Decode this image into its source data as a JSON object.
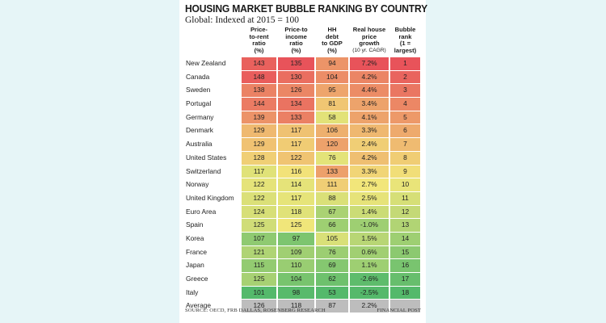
{
  "title": "HOUSING MARKET BUBBLE RANKING BY COUNTRY",
  "subtitle": "Global: Indexed at 2015 = 100",
  "source": "SOURCE: OECD, FRB DALLAS, ROSENBERG RESEARCH",
  "credit": "FINANCIAL POST",
  "chart_data": {
    "type": "table",
    "title": "HOUSING MARKET BUBBLE RANKING BY COUNTRY",
    "subtitle": "Global: Indexed at 2015 = 100",
    "headers": [
      [
        "Price-",
        "to-rent",
        "ratio",
        "(%)"
      ],
      [
        "Price-to",
        "income",
        "ratio",
        "(%)"
      ],
      [
        "HH",
        "debt",
        "to GDP",
        "(%)"
      ],
      [
        "Real house",
        "price",
        "growth",
        "(10 yr. CAGR)"
      ],
      [
        "Bubble",
        "rank",
        "(1 =",
        "largest)"
      ]
    ],
    "rows": [
      {
        "country": "New Zealand",
        "values": [
          "143",
          "135",
          "94",
          "7.2%",
          "1"
        ]
      },
      {
        "country": "Canada",
        "values": [
          "148",
          "130",
          "104",
          "4.2%",
          "2"
        ]
      },
      {
        "country": "Sweden",
        "values": [
          "138",
          "126",
          "95",
          "4.4%",
          "3"
        ]
      },
      {
        "country": "Portugal",
        "values": [
          "144",
          "134",
          "81",
          "3.4%",
          "4"
        ]
      },
      {
        "country": "Germany",
        "values": [
          "139",
          "133",
          "58",
          "4.1%",
          "5"
        ]
      },
      {
        "country": "Denmark",
        "values": [
          "129",
          "117",
          "106",
          "3.3%",
          "6"
        ]
      },
      {
        "country": "Australia",
        "values": [
          "129",
          "117",
          "120",
          "2.4%",
          "7"
        ]
      },
      {
        "country": "United States",
        "values": [
          "128",
          "122",
          "76",
          "4.2%",
          "8"
        ]
      },
      {
        "country": "Switzerland",
        "values": [
          "117",
          "116",
          "133",
          "3.3%",
          "9"
        ]
      },
      {
        "country": "Norway",
        "values": [
          "122",
          "114",
          "111",
          "2.7%",
          "10"
        ]
      },
      {
        "country": "United Kingdom",
        "values": [
          "122",
          "117",
          "88",
          "2.5%",
          "11"
        ]
      },
      {
        "country": "Euro Area",
        "values": [
          "124",
          "118",
          "67",
          "1.4%",
          "12"
        ]
      },
      {
        "country": "Spain",
        "values": [
          "125",
          "125",
          "66",
          "-1.0%",
          "13"
        ]
      },
      {
        "country": "Korea",
        "values": [
          "107",
          "97",
          "105",
          "1.5%",
          "14"
        ]
      },
      {
        "country": "France",
        "values": [
          "121",
          "109",
          "76",
          "0.6%",
          "15"
        ]
      },
      {
        "country": "Japan",
        "values": [
          "115",
          "110",
          "69",
          "1.1%",
          "16"
        ]
      },
      {
        "country": "Greece",
        "values": [
          "125",
          "104",
          "62",
          "-2.6%",
          "17"
        ]
      },
      {
        "country": "Italy",
        "values": [
          "101",
          "98",
          "53",
          "-2.5%",
          "18"
        ]
      }
    ],
    "average": {
      "country": "Average",
      "values": [
        "126",
        "118",
        "87",
        "2.2%",
        ""
      ]
    },
    "colors": {
      "high_red": "#e8535a",
      "mid_yellow": "#f2e77a",
      "low_green": "#54b96b",
      "average_gray": "#bdbdbd"
    }
  }
}
